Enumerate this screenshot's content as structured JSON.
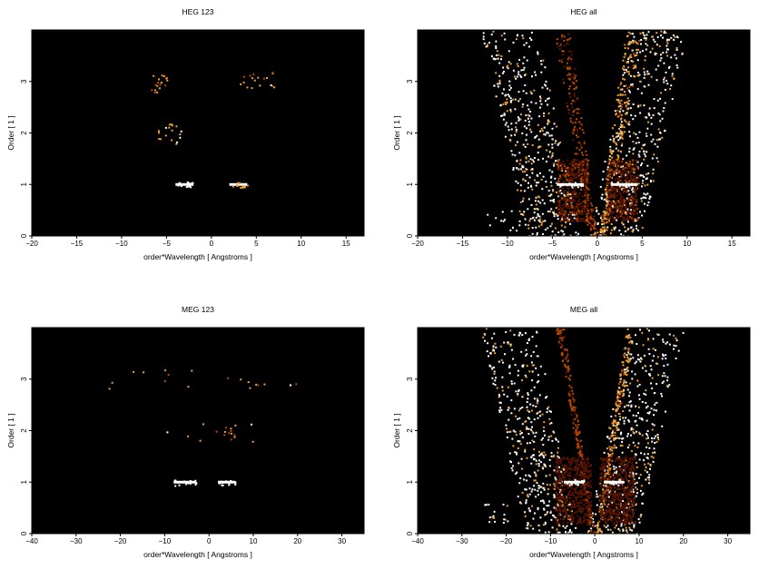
{
  "chart_data": [
    {
      "type": "heatmap",
      "title": "HEG 123",
      "xlabel": "order*Wavelength [ Angstroms ]",
      "ylabel": "Order [ 1 ]",
      "xlim": [
        -20,
        17
      ],
      "ylim": [
        0,
        4
      ],
      "xticks": [
        -20,
        -15,
        -10,
        -5,
        0,
        5,
        10,
        15
      ],
      "yticks": [
        0,
        1,
        2,
        3
      ],
      "background": "#000000",
      "colormap": [
        "#000000",
        "#5a1400",
        "#b84a00",
        "#f0a030",
        "#ffffff"
      ],
      "features": [
        {
          "kind": "streak",
          "y": 1,
          "x": [
            -4,
            -2
          ],
          "intensity": 1.0
        },
        {
          "kind": "streak",
          "y": 1,
          "x": [
            2,
            4
          ],
          "intensity": 0.9
        },
        {
          "kind": "cluster",
          "y": 2,
          "x": [
            -6,
            -3
          ],
          "intensity": 0.6
        },
        {
          "kind": "cluster",
          "y": 3,
          "x": [
            -7,
            -5
          ],
          "intensity": 0.5
        },
        {
          "kind": "cluster",
          "y": 3,
          "x": [
            3,
            7
          ],
          "intensity": 0.5
        }
      ]
    },
    {
      "type": "heatmap",
      "title": "HEG all",
      "xlabel": "order*Wavelength [ Angstroms ]",
      "ylabel": "Order [ 1 ]",
      "xlim": [
        -20,
        17
      ],
      "ylim": [
        0,
        4
      ],
      "xticks": [
        -20,
        -15,
        -10,
        -5,
        0,
        5,
        10,
        15
      ],
      "yticks": [
        0,
        1,
        2,
        3
      ],
      "background": "#000000",
      "colormap": [
        "#000000",
        "#5a1400",
        "#b84a00",
        "#f0a030",
        "#ffffff"
      ],
      "features": [
        {
          "kind": "scatter-field",
          "x": [
            -13,
            10
          ],
          "y": [
            0,
            4
          ],
          "intensity": 0.8
        },
        {
          "kind": "diagonal",
          "x": [
            0.5,
            4
          ],
          "y": [
            0,
            4
          ],
          "intensity": 0.9
        },
        {
          "kind": "diagonal",
          "x": [
            -0.5,
            -4
          ],
          "y": [
            0,
            4
          ],
          "intensity": 0.5
        },
        {
          "kind": "glow",
          "x": [
            -4.5,
            -1
          ],
          "y": [
            0.3,
            1.5
          ],
          "intensity": 0.6
        },
        {
          "kind": "glow",
          "x": [
            1,
            4.5
          ],
          "y": [
            0.3,
            1.5
          ],
          "intensity": 0.6
        },
        {
          "kind": "streak",
          "y": 1,
          "x": [
            -4.5,
            -1.5
          ],
          "intensity": 1.0
        },
        {
          "kind": "streak",
          "y": 1,
          "x": [
            1.5,
            4.5
          ],
          "intensity": 1.0
        },
        {
          "kind": "cluster",
          "y": 0.3,
          "x": [
            -13,
            -7
          ],
          "intensity": 0.8
        }
      ]
    },
    {
      "type": "heatmap",
      "title": "MEG 123",
      "xlabel": "order*Wavelength [ Angstroms ]",
      "ylabel": "Order [ 1 ]",
      "xlim": [
        -40,
        35
      ],
      "ylim": [
        0,
        4
      ],
      "xticks": [
        -40,
        -30,
        -20,
        -10,
        0,
        10,
        20,
        30
      ],
      "yticks": [
        0,
        1,
        2,
        3
      ],
      "background": "#000000",
      "colormap": [
        "#000000",
        "#5a1400",
        "#b84a00",
        "#f0a030",
        "#ffffff"
      ],
      "features": [
        {
          "kind": "streak",
          "y": 1,
          "x": [
            -8,
            -3
          ],
          "intensity": 1.0
        },
        {
          "kind": "streak",
          "y": 1,
          "x": [
            2,
            6
          ],
          "intensity": 1.0
        },
        {
          "kind": "cluster",
          "y": 2,
          "x": [
            -10,
            10
          ],
          "intensity": 0.5
        },
        {
          "kind": "cluster",
          "y": 3,
          "x": [
            -25,
            20
          ],
          "intensity": 0.5
        }
      ]
    },
    {
      "type": "heatmap",
      "title": "MEG all",
      "xlabel": "order*Wavelength [ Angstroms ]",
      "ylabel": "Order [ 1 ]",
      "xlim": [
        -40,
        35
      ],
      "ylim": [
        0,
        4
      ],
      "xticks": [
        -40,
        -30,
        -20,
        -10,
        0,
        10,
        20,
        30
      ],
      "yticks": [
        0,
        1,
        2,
        3
      ],
      "background": "#000000",
      "colormap": [
        "#000000",
        "#5a1400",
        "#b84a00",
        "#f0a030",
        "#ffffff"
      ],
      "features": [
        {
          "kind": "scatter-field",
          "x": [
            -26,
            20
          ],
          "y": [
            0,
            4
          ],
          "intensity": 0.8
        },
        {
          "kind": "diagonal",
          "x": [
            0.5,
            8
          ],
          "y": [
            0,
            4
          ],
          "intensity": 0.9
        },
        {
          "kind": "diagonal",
          "x": [
            -0.5,
            -8
          ],
          "y": [
            0,
            4
          ],
          "intensity": 0.5
        },
        {
          "kind": "glow",
          "x": [
            -9,
            -1
          ],
          "y": [
            0.2,
            1.5
          ],
          "intensity": 0.5
        },
        {
          "kind": "glow",
          "x": [
            1,
            9
          ],
          "y": [
            0.2,
            1.5
          ],
          "intensity": 0.5
        },
        {
          "kind": "streak",
          "y": 1,
          "x": [
            -7,
            -2.5
          ],
          "intensity": 1.0
        },
        {
          "kind": "streak",
          "y": 1,
          "x": [
            2,
            6.5
          ],
          "intensity": 1.0
        },
        {
          "kind": "cluster",
          "y": 0.4,
          "x": [
            -26,
            -18
          ],
          "intensity": 0.8
        }
      ]
    }
  ]
}
